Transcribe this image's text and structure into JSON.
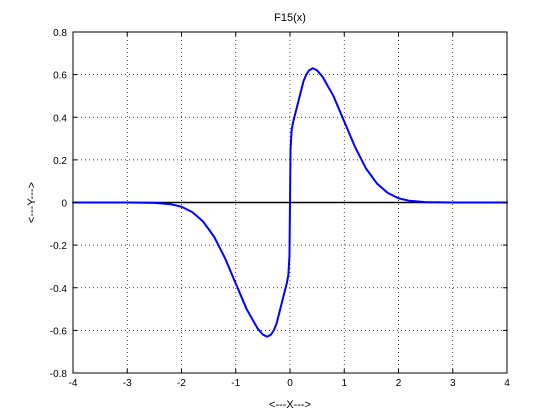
{
  "chart_data": {
    "type": "line",
    "title": "F15(x)",
    "xlabel": "<---X--->",
    "ylabel": "<---Y--->",
    "xlim": [
      -4,
      4
    ],
    "ylim": [
      -0.8,
      0.8
    ],
    "xticks": [
      -4,
      -3,
      -2,
      -1,
      0,
      1,
      2,
      3,
      4
    ],
    "yticks": [
      -0.8,
      -0.6,
      -0.4,
      -0.2,
      0,
      0.2,
      0.4,
      0.6,
      0.8
    ],
    "grid": true,
    "grid_style": "dotted",
    "series": [
      {
        "color": "#0000ff",
        "x": [
          -4,
          -3.0,
          -2.5,
          -2.2,
          -2.0,
          -1.8,
          -1.6,
          -1.4,
          -1.2,
          -1.0,
          -0.8,
          -0.6,
          -0.5,
          -0.42,
          -0.35,
          -0.3,
          -0.25,
          -0.2,
          -0.15,
          -0.1,
          -0.06,
          -0.03,
          -0.01,
          0.0,
          0.01,
          0.03,
          0.06,
          0.1,
          0.15,
          0.2,
          0.25,
          0.3,
          0.35,
          0.42,
          0.5,
          0.6,
          0.8,
          1.0,
          1.2,
          1.4,
          1.6,
          1.8,
          2.0,
          2.2,
          2.5,
          3.0,
          4
        ],
        "y": [
          0,
          0,
          -0.002,
          -0.008,
          -0.02,
          -0.045,
          -0.09,
          -0.16,
          -0.26,
          -0.38,
          -0.5,
          -0.59,
          -0.62,
          -0.63,
          -0.62,
          -0.6,
          -0.57,
          -0.52,
          -0.47,
          -0.42,
          -0.38,
          -0.34,
          -0.25,
          0.0,
          0.25,
          0.34,
          0.38,
          0.42,
          0.47,
          0.52,
          0.57,
          0.6,
          0.62,
          0.63,
          0.62,
          0.59,
          0.5,
          0.38,
          0.26,
          0.16,
          0.09,
          0.045,
          0.02,
          0.008,
          0.002,
          0,
          0
        ]
      },
      {
        "color": "#000000",
        "x": [
          -4,
          4
        ],
        "y": [
          0,
          0
        ]
      }
    ]
  }
}
